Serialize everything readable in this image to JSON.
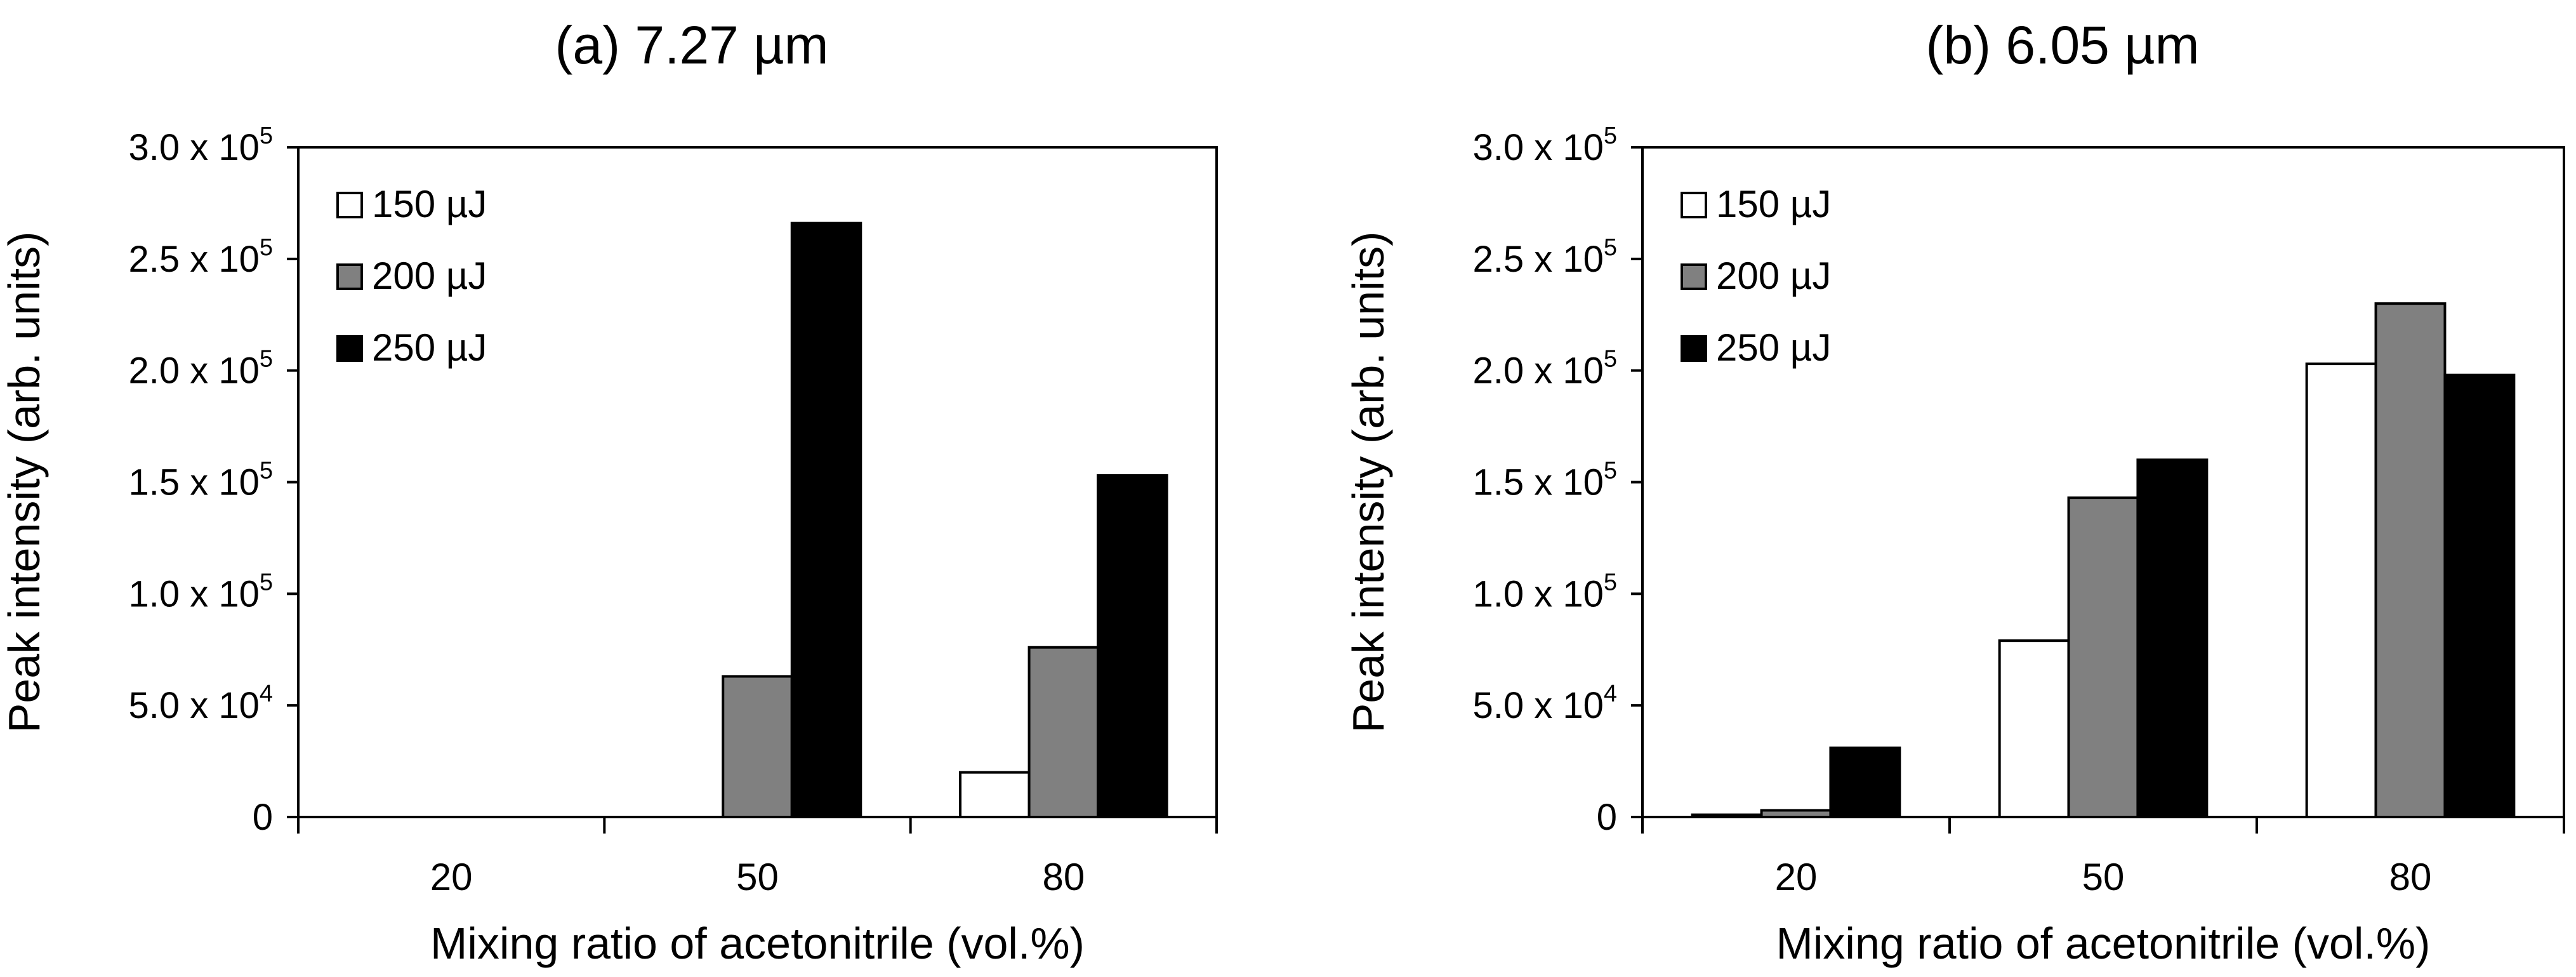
{
  "chart_data": [
    {
      "type": "bar",
      "title": "(a) 7.27 µm",
      "xlabel": "Mixing ratio of acetonitrile (vol.%)",
      "ylabel": "Peak intensity (arb. units)",
      "categories": [
        "20",
        "50",
        "80"
      ],
      "ylim": [
        0,
        300000
      ],
      "yticks": [
        {
          "value": 0,
          "mantissa": "0",
          "exponent": ""
        },
        {
          "value": 50000,
          "mantissa": "5.0 x 10",
          "exponent": "4"
        },
        {
          "value": 100000,
          "mantissa": "1.0 x 10",
          "exponent": "5"
        },
        {
          "value": 150000,
          "mantissa": "1.5 x 10",
          "exponent": "5"
        },
        {
          "value": 200000,
          "mantissa": "2.0 x 10",
          "exponent": "5"
        },
        {
          "value": 250000,
          "mantissa": "2.5 x 10",
          "exponent": "5"
        },
        {
          "value": 300000,
          "mantissa": "3.0 x 10",
          "exponent": "5"
        }
      ],
      "legend_position": "top-left",
      "series": [
        {
          "name": "150 µJ",
          "color": "#ffffff",
          "values": [
            0,
            0,
            20000
          ]
        },
        {
          "name": "200 µJ",
          "color": "#808080",
          "values": [
            0,
            63000,
            76000
          ]
        },
        {
          "name": "250 µJ",
          "color": "#000000",
          "values": [
            0,
            266000,
            153000
          ]
        }
      ]
    },
    {
      "type": "bar",
      "title": "(b) 6.05 µm",
      "xlabel": "Mixing ratio of acetonitrile (vol.%)",
      "ylabel": "Peak intensity (arb. units)",
      "categories": [
        "20",
        "50",
        "80"
      ],
      "ylim": [
        0,
        300000
      ],
      "yticks": [
        {
          "value": 0,
          "mantissa": "0",
          "exponent": ""
        },
        {
          "value": 50000,
          "mantissa": "5.0 x 10",
          "exponent": "4"
        },
        {
          "value": 100000,
          "mantissa": "1.0 x 10",
          "exponent": "5"
        },
        {
          "value": 150000,
          "mantissa": "1.5 x 10",
          "exponent": "5"
        },
        {
          "value": 200000,
          "mantissa": "2.0 x 10",
          "exponent": "5"
        },
        {
          "value": 250000,
          "mantissa": "2.5 x 10",
          "exponent": "5"
        },
        {
          "value": 300000,
          "mantissa": "3.0 x 10",
          "exponent": "5"
        }
      ],
      "legend_position": "top-left",
      "series": [
        {
          "name": "150 µJ",
          "color": "#ffffff",
          "values": [
            1000,
            79000,
            203000
          ]
        },
        {
          "name": "200 µJ",
          "color": "#808080",
          "values": [
            3000,
            143000,
            230000
          ]
        },
        {
          "name": "250 µJ",
          "color": "#000000",
          "values": [
            31000,
            160000,
            198000
          ]
        }
      ]
    }
  ]
}
